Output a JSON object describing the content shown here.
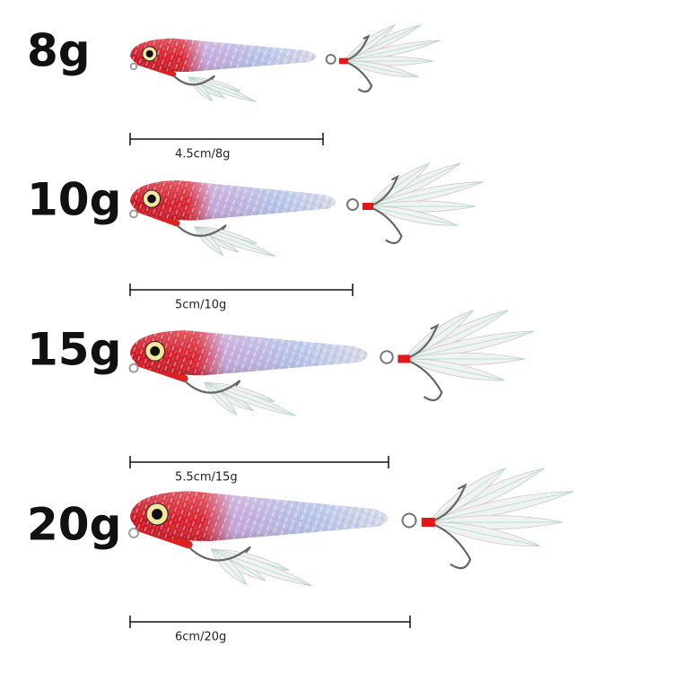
{
  "items": [
    {
      "weight": "8g",
      "size": "4.5cm/8g"
    },
    {
      "weight": "10g",
      "size": "5cm/10g"
    },
    {
      "weight": "15g",
      "size": "5.5cm/15g"
    },
    {
      "weight": "20g",
      "size": "6cm/20g"
    }
  ]
}
